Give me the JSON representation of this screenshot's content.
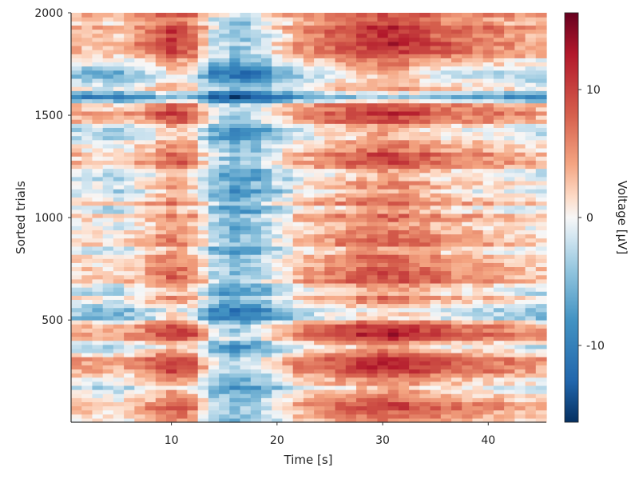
{
  "chart_data": {
    "type": "heatmap",
    "title": "",
    "xlabel": "Time [s]",
    "ylabel": "Sorted trials",
    "xlim": [
      0.5,
      45.5
    ],
    "ylim": [
      1,
      2000
    ],
    "x_ticks": [
      {
        "value": 10,
        "label": "10"
      },
      {
        "value": 20,
        "label": "20"
      },
      {
        "value": 30,
        "label": "30"
      },
      {
        "value": 40,
        "label": "40"
      }
    ],
    "y_ticks": [
      {
        "value": 500,
        "label": "500"
      },
      {
        "value": 1000,
        "label": "1000"
      },
      {
        "value": 1500,
        "label": "1500"
      },
      {
        "value": 2000,
        "label": "2000"
      }
    ],
    "grid": false,
    "colormap": "RdBu_r",
    "colorbar": {
      "label": "Voltage [µV]",
      "vmin": -16,
      "vmax": 16,
      "ticks": [
        {
          "value": 10,
          "label": "10"
        },
        {
          "value": 0,
          "label": "0"
        },
        {
          "value": -10,
          "label": "-10"
        }
      ]
    },
    "time_values": [
      1,
      2,
      3,
      4,
      5,
      6,
      7,
      8,
      9,
      10,
      11,
      12,
      13,
      14,
      15,
      16,
      17,
      18,
      19,
      20,
      21,
      22,
      23,
      24,
      25,
      26,
      27,
      28,
      29,
      30,
      31,
      32,
      33,
      34,
      35,
      36,
      37,
      38,
      39,
      40,
      41,
      42,
      43,
      44,
      45
    ],
    "trial_bands": [
      {
        "trial": 2000,
        "offset": 4,
        "strength": 0.8
      },
      {
        "trial": 1940,
        "offset": 5,
        "strength": 1.2
      },
      {
        "trial": 1880,
        "offset": 6,
        "strength": 1.4
      },
      {
        "trial": 1840,
        "offset": 7,
        "strength": 1.4
      },
      {
        "trial": 1780,
        "offset": 1,
        "strength": 1.0
      },
      {
        "trial": 1720,
        "offset": -6,
        "strength": 1.3
      },
      {
        "trial": 1680,
        "offset": -4,
        "strength": 1.0
      },
      {
        "trial": 1640,
        "offset": 1,
        "strength": 0.8
      },
      {
        "trial": 1590,
        "offset": -12,
        "strength": 1.0
      },
      {
        "trial": 1550,
        "offset": 3,
        "strength": 1.0
      },
      {
        "trial": 1500,
        "offset": 5,
        "strength": 1.2
      },
      {
        "trial": 1460,
        "offset": 2,
        "strength": 1.0
      },
      {
        "trial": 1420,
        "offset": -5,
        "strength": 1.0
      },
      {
        "trial": 1380,
        "offset": -1,
        "strength": 1.0
      },
      {
        "trial": 1340,
        "offset": 3,
        "strength": 1.0
      },
      {
        "trial": 1300,
        "offset": 4,
        "strength": 1.2
      },
      {
        "trial": 1260,
        "offset": 3,
        "strength": 1.1
      },
      {
        "trial": 1210,
        "offset": -2,
        "strength": 0.9
      },
      {
        "trial": 1160,
        "offset": 1,
        "strength": 1.0
      },
      {
        "trial": 1120,
        "offset": -3,
        "strength": 1.0
      },
      {
        "trial": 1080,
        "offset": 2,
        "strength": 1.0
      },
      {
        "trial": 1040,
        "offset": -2,
        "strength": 1.0
      },
      {
        "trial": 1000,
        "offset": 2,
        "strength": 1.0
      },
      {
        "trial": 960,
        "offset": -3,
        "strength": 1.0
      },
      {
        "trial": 920,
        "offset": 3,
        "strength": 1.0
      },
      {
        "trial": 880,
        "offset": 4,
        "strength": 1.1
      },
      {
        "trial": 840,
        "offset": -2,
        "strength": 1.0
      },
      {
        "trial": 800,
        "offset": 3,
        "strength": 1.1
      },
      {
        "trial": 760,
        "offset": 1,
        "strength": 1.0
      },
      {
        "trial": 720,
        "offset": 5,
        "strength": 1.2
      },
      {
        "trial": 680,
        "offset": 2,
        "strength": 1.0
      },
      {
        "trial": 640,
        "offset": -2,
        "strength": 1.0
      },
      {
        "trial": 600,
        "offset": 1,
        "strength": 1.0
      },
      {
        "trial": 560,
        "offset": -4,
        "strength": 1.0
      },
      {
        "trial": 520,
        "offset": -7,
        "strength": 1.1
      },
      {
        "trial": 480,
        "offset": 4,
        "strength": 1.2
      },
      {
        "trial": 440,
        "offset": 8,
        "strength": 1.4
      },
      {
        "trial": 400,
        "offset": 3,
        "strength": 1.0
      },
      {
        "trial": 360,
        "offset": -4,
        "strength": 1.1
      },
      {
        "trial": 320,
        "offset": 5,
        "strength": 1.2
      },
      {
        "trial": 280,
        "offset": 6,
        "strength": 1.3
      },
      {
        "trial": 240,
        "offset": 4,
        "strength": 1.1
      },
      {
        "trial": 200,
        "offset": 1,
        "strength": 1.0
      },
      {
        "trial": 160,
        "offset": -3,
        "strength": 1.0
      },
      {
        "trial": 120,
        "offset": 2,
        "strength": 1.0
      },
      {
        "trial": 80,
        "offset": 6,
        "strength": 1.3
      },
      {
        "trial": 40,
        "offset": 3,
        "strength": 1.0
      },
      {
        "trial": 1,
        "offset": -1,
        "strength": 1.0
      }
    ],
    "time_profile": [
      {
        "time": 1,
        "value": 0
      },
      {
        "time": 5,
        "value": -1
      },
      {
        "time": 8,
        "value": 2
      },
      {
        "time": 10,
        "value": 5
      },
      {
        "time": 12,
        "value": 3
      },
      {
        "time": 14,
        "value": -4
      },
      {
        "time": 16,
        "value": -6
      },
      {
        "time": 18,
        "value": -5
      },
      {
        "time": 20,
        "value": -2
      },
      {
        "time": 22,
        "value": 1
      },
      {
        "time": 25,
        "value": 3
      },
      {
        "time": 28,
        "value": 5
      },
      {
        "time": 30,
        "value": 6
      },
      {
        "time": 33,
        "value": 5
      },
      {
        "time": 36,
        "value": 3
      },
      {
        "time": 40,
        "value": 2
      },
      {
        "time": 45,
        "value": 0
      }
    ]
  }
}
